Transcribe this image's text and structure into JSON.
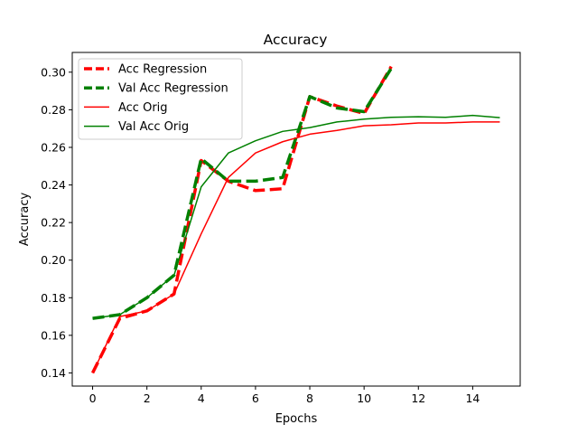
{
  "chart_data": {
    "type": "line",
    "title": "Accuracy",
    "xlabel": "Epochs",
    "ylabel": "Accuracy",
    "xlim": [
      -0.75,
      15.75
    ],
    "ylim": [
      0.133,
      0.3105
    ],
    "xticks": [
      "0",
      "2",
      "4",
      "6",
      "8",
      "10",
      "12",
      "14"
    ],
    "xtick_values": [
      0,
      2,
      4,
      6,
      8,
      10,
      12,
      14
    ],
    "yticks": [
      "0.14",
      "0.16",
      "0.18",
      "0.20",
      "0.22",
      "0.24",
      "0.26",
      "0.28",
      "0.30"
    ],
    "ytick_values": [
      0.14,
      0.16,
      0.18,
      0.2,
      0.22,
      0.24,
      0.26,
      0.28,
      0.3
    ],
    "grid": false,
    "legend_position": "top-left",
    "series": [
      {
        "name": "Acc Regression",
        "color": "#ff0000",
        "style": "dashed-thick",
        "x": [
          0,
          1,
          2,
          3,
          4,
          5,
          6,
          7,
          8,
          9,
          10,
          11
        ],
        "y": [
          0.14,
          0.169,
          0.173,
          0.182,
          0.253,
          0.242,
          0.237,
          0.238,
          0.287,
          0.282,
          0.278,
          0.303
        ]
      },
      {
        "name": "Val Acc Regression",
        "color": "#008000",
        "style": "dashed-thick",
        "x": [
          0,
          1,
          2,
          3,
          4,
          5,
          6,
          7,
          8,
          9,
          10,
          11
        ],
        "y": [
          0.169,
          0.171,
          0.18,
          0.192,
          0.254,
          0.242,
          0.242,
          0.244,
          0.287,
          0.281,
          0.279,
          0.302
        ]
      },
      {
        "name": "Acc Orig",
        "color": "#ff0000",
        "style": "solid",
        "x": [
          0,
          1,
          2,
          3,
          4,
          5,
          6,
          7,
          8,
          9,
          10,
          11,
          12,
          13,
          14,
          15
        ],
        "y": [
          0.14,
          0.17,
          0.173,
          0.182,
          0.214,
          0.244,
          0.257,
          0.263,
          0.267,
          0.269,
          0.2715,
          0.272,
          0.273,
          0.273,
          0.2735,
          0.2735
        ]
      },
      {
        "name": "Val Acc Orig",
        "color": "#008000",
        "style": "solid",
        "x": [
          0,
          1,
          2,
          3,
          4,
          5,
          6,
          7,
          8,
          9,
          10,
          11,
          12,
          13,
          14,
          15
        ],
        "y": [
          0.169,
          0.171,
          0.18,
          0.192,
          0.239,
          0.257,
          0.2635,
          0.2685,
          0.2705,
          0.2735,
          0.275,
          0.276,
          0.2763,
          0.276,
          0.277,
          0.2758
        ]
      }
    ]
  }
}
